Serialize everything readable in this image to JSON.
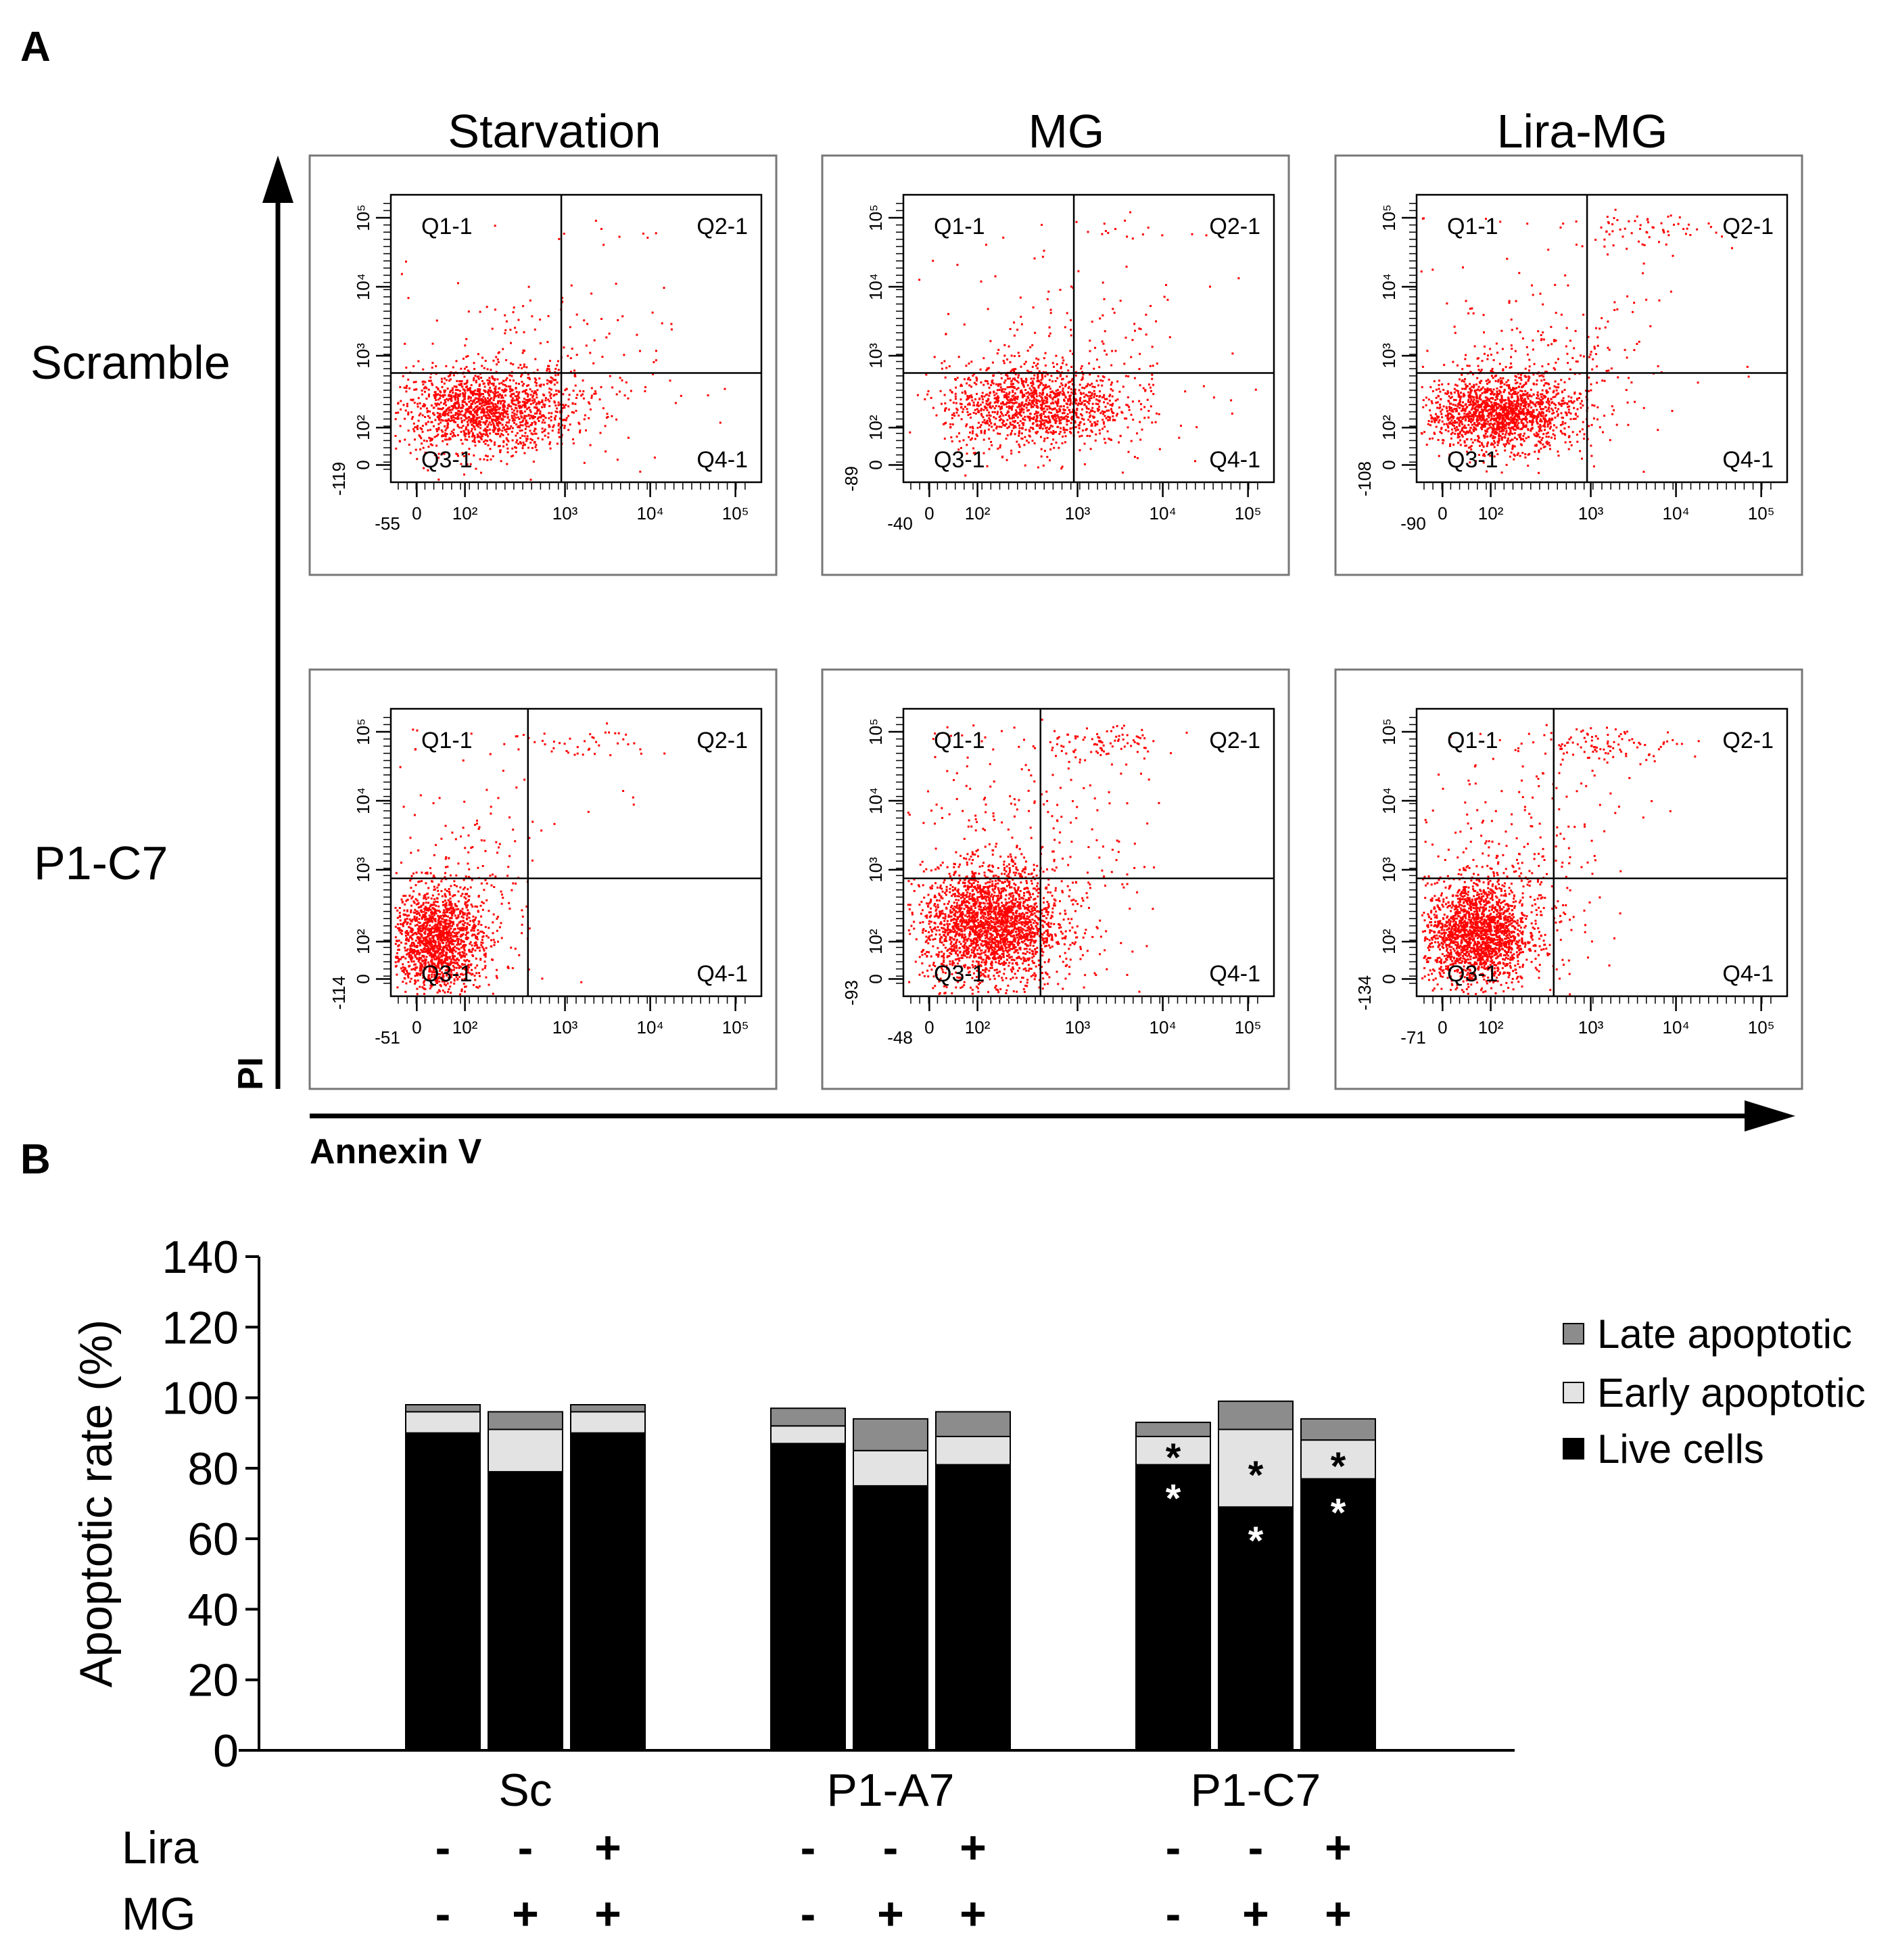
{
  "panel_a": {
    "letter": "A",
    "columns": [
      "Starvation",
      "MG",
      "Lira-MG"
    ],
    "rows": [
      "Scramble",
      "P1-C7"
    ],
    "y_axis_label": "PI",
    "x_axis_label": "Annexin V",
    "quadrant_labels": [
      "Q1-1",
      "Q2-1",
      "Q3-1",
      "Q4-1"
    ],
    "x_ticks": [
      "0",
      "10²",
      "10³",
      "10⁴",
      "10⁵"
    ],
    "y_ticks": [
      "0",
      "10²",
      "10³",
      "10⁴",
      "10⁵"
    ],
    "dot_color": "#ff0000",
    "plots": [
      {
        "row": 0,
        "col": 0,
        "x_min": "-55",
        "y_min": "-119"
      },
      {
        "row": 0,
        "col": 1,
        "x_min": "-40",
        "y_min": "-89"
      },
      {
        "row": 0,
        "col": 2,
        "x_min": "-90",
        "y_min": "-108"
      },
      {
        "row": 1,
        "col": 0,
        "x_min": "-51",
        "y_min": "-114"
      },
      {
        "row": 1,
        "col": 1,
        "x_min": "-48",
        "y_min": "-93"
      },
      {
        "row": 1,
        "col": 2,
        "x_min": "-71",
        "y_min": "-134"
      }
    ]
  },
  "panel_b": {
    "letter": "B",
    "chart_data": {
      "type": "bar",
      "stacked": true,
      "ylabel": "Apoptotic rate (%)",
      "ylim": [
        0,
        140
      ],
      "yticks": [
        0,
        20,
        40,
        60,
        80,
        100,
        120,
        140
      ],
      "groups": [
        "Sc",
        "P1-A7",
        "P1-C7"
      ],
      "treatment_rows": [
        {
          "label": "Lira",
          "values": [
            "-",
            "-",
            "+",
            "-",
            "-",
            "+",
            "-",
            "-",
            "+"
          ]
        },
        {
          "label": "MG",
          "values": [
            "-",
            "+",
            "+",
            "-",
            "+",
            "+",
            "-",
            "+",
            "+"
          ]
        }
      ],
      "series": [
        {
          "name": "Live cells",
          "color": "#000000",
          "values": [
            90,
            79,
            90,
            87,
            75,
            81,
            81,
            69,
            77
          ]
        },
        {
          "name": "Early apoptotic",
          "color": "#e3e3e3",
          "values": [
            6,
            12,
            6,
            5,
            10,
            8,
            8,
            22,
            11
          ]
        },
        {
          "name": "Late apoptotic",
          "color": "#8c8c8c",
          "values": [
            2,
            5,
            2,
            5,
            9,
            7,
            4,
            8,
            6
          ]
        }
      ],
      "legend": [
        "Late apoptotic",
        "Early apoptotic",
        "Live cells"
      ],
      "legend_position": "right",
      "significance_marker": "*",
      "significant_bars": [
        6,
        7,
        8
      ]
    }
  }
}
